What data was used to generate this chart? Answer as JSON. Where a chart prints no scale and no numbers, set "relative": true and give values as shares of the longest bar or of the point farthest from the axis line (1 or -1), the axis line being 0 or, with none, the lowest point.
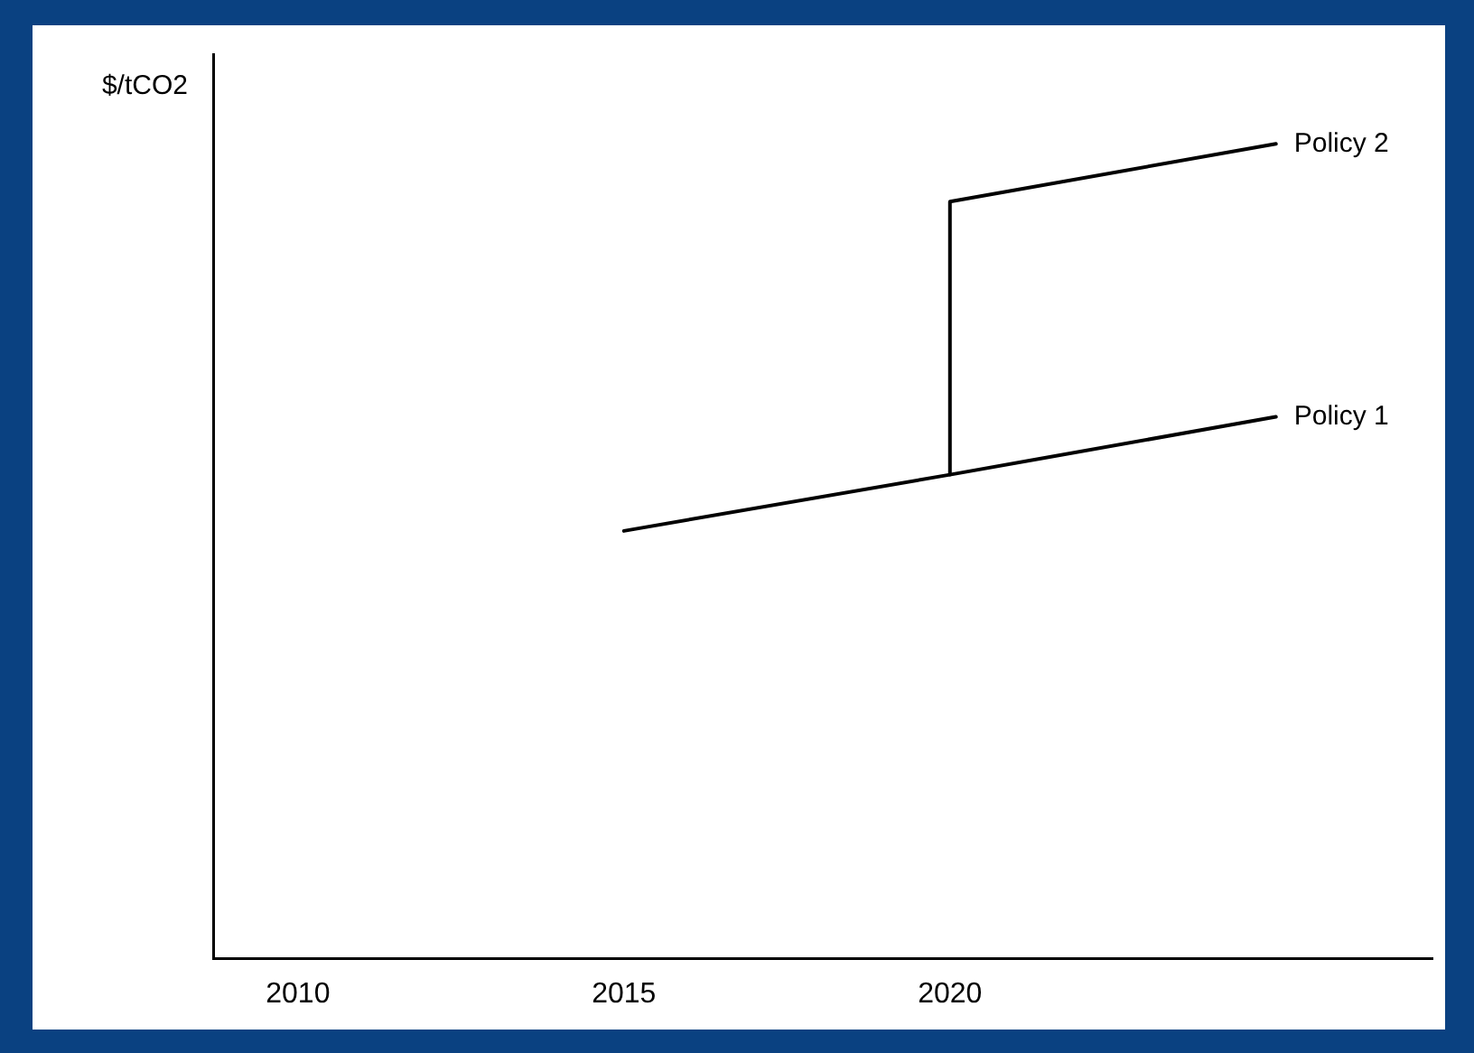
{
  "chart_data": {
    "type": "line",
    "ylabel": "$/tCO2",
    "relative": true,
    "xlim": [
      2008.7,
      2027.4
    ],
    "xticks": [
      2010,
      2015,
      2020
    ],
    "tick_labels": "x",
    "grid": false,
    "legend": false,
    "marker": "none",
    "line_style": "solid",
    "series": [
      {
        "name": "Policy 1",
        "color": "#000000",
        "x": [
          2015,
          2020,
          2025
        ],
        "values": [
          0.525,
          0.594,
          0.665
        ]
      },
      {
        "name": "Policy 2",
        "color": "#000000",
        "x": [
          2020,
          2020,
          2025
        ],
        "values": [
          0.594,
          0.929,
          1
        ]
      }
    ]
  }
}
